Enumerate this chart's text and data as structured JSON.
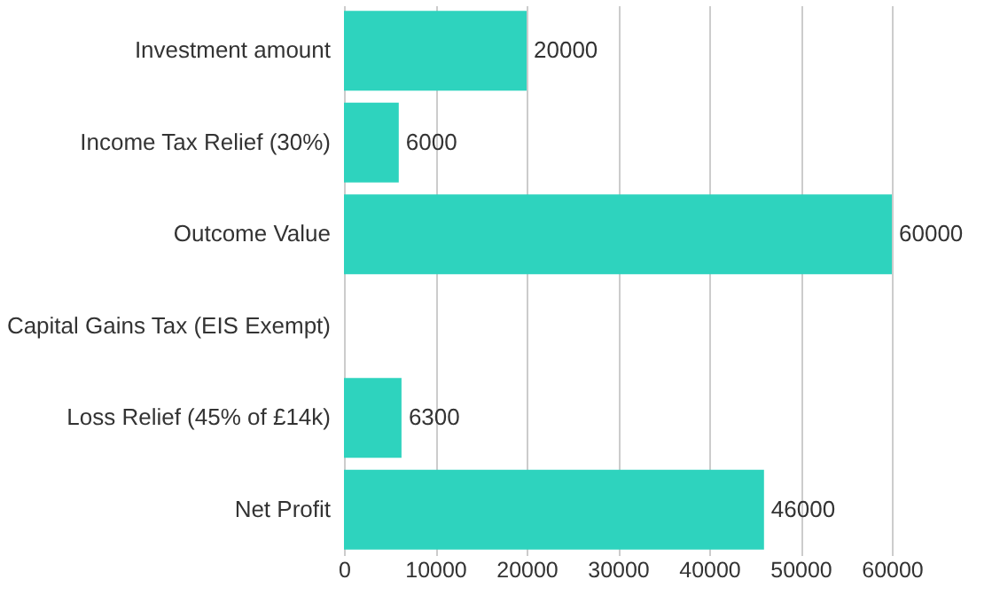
{
  "chart_data": {
    "type": "bar",
    "orientation": "horizontal",
    "categories": [
      "Investment amount",
      "Income Tax Relief (30%)",
      "Outcome Value",
      "Capital Gains Tax (EIS Exempt)",
      "Loss Relief (45% of £14k)",
      "Net Profit"
    ],
    "values": [
      20000,
      6000,
      60000,
      null,
      6300,
      46000
    ],
    "color": "#2ed3be",
    "xlim": [
      0,
      60000
    ],
    "xticks": [
      0,
      10000,
      20000,
      30000,
      40000,
      50000,
      60000
    ],
    "grid": "x",
    "data_labels": true
  }
}
